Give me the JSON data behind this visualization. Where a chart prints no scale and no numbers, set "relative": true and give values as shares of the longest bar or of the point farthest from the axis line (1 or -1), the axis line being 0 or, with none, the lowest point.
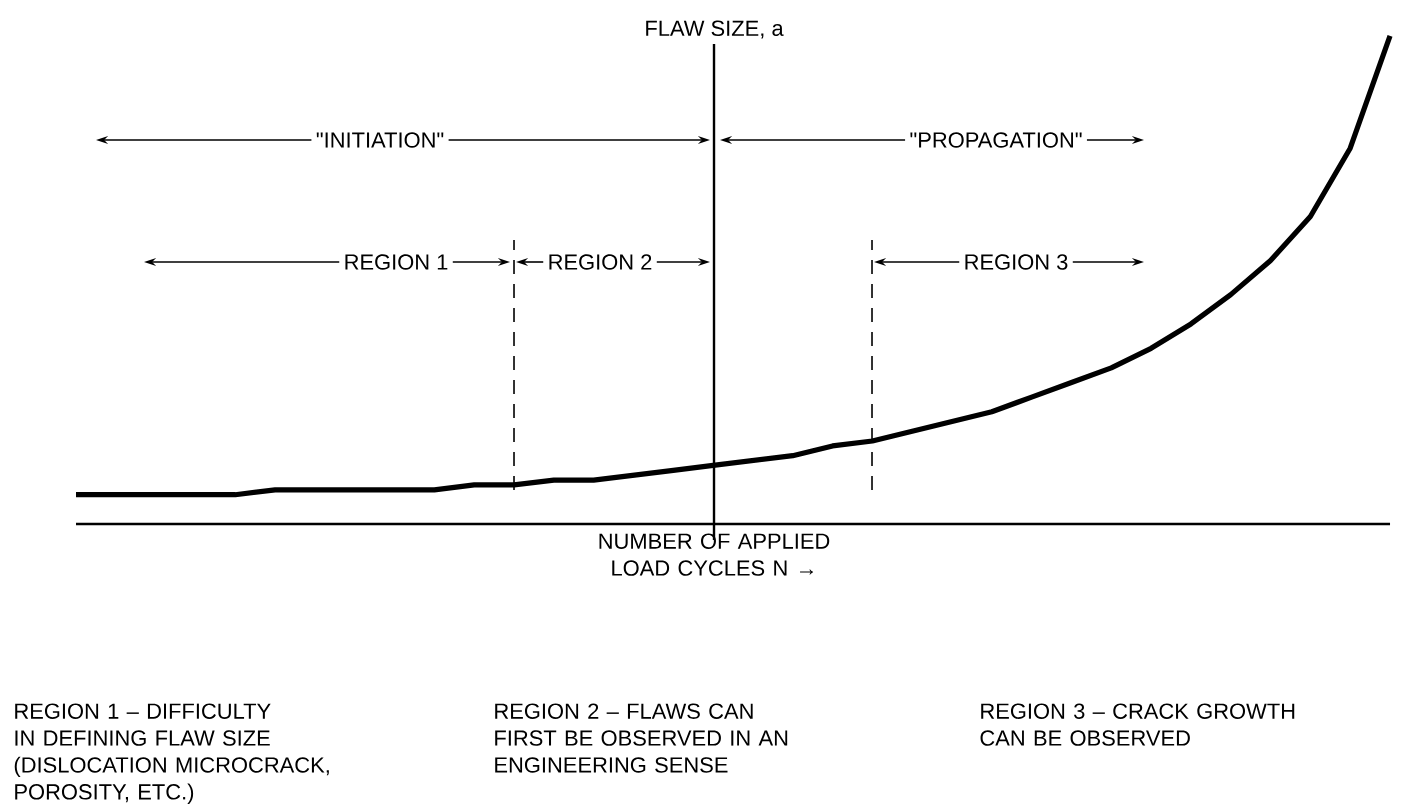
{
  "chart_data": {
    "type": "line",
    "relative": true,
    "color": "#000000",
    "categories": [
      null,
      null,
      null,
      null,
      null,
      null,
      null,
      null,
      null,
      null,
      null,
      null,
      null,
      null,
      null,
      null,
      null,
      null,
      null,
      null,
      null,
      null,
      null,
      null,
      null,
      null,
      null,
      null,
      null,
      null,
      null,
      null,
      null,
      null
    ],
    "values": [
      0.06,
      0.06,
      0.06,
      0.06,
      0.06,
      0.07,
      0.07,
      0.07,
      0.07,
      0.07,
      0.08,
      0.08,
      0.09,
      0.09,
      0.1,
      0.11,
      0.12,
      0.13,
      0.14,
      0.16,
      0.17,
      0.19,
      0.21,
      0.23,
      0.26,
      0.29,
      0.32,
      0.36,
      0.41,
      0.47,
      0.54,
      0.63,
      0.77,
      1
    ],
    "ylabel": "FLAW SIZE, a",
    "xlabel": "NUMBER OF APPLIED LOAD CYCLES N →",
    "annotations": [
      "\"INITIATION\"",
      "\"PROPAGATION\"",
      "REGION 1",
      "REGION 2",
      "REGION 3",
      "REGION 1 – DIFFICULTY IN DEFINING FLAW SIZE (DISLOCATION MICROCRACK, POROSITY, ETC.)",
      "REGION 2 – FLAWS CAN FIRST BE OBSERVED IN AN ENGINEERING SENSE",
      "REGION 3 – CRACK GROWTH CAN BE OBSERVED"
    ]
  }
}
